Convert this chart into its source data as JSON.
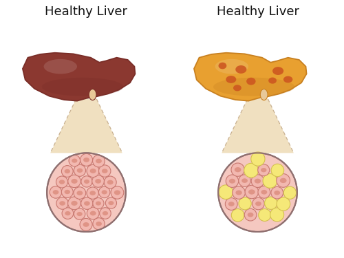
{
  "title_left": "Healthy Liver",
  "title_right": "Healthy Liver",
  "bg_color": "#ffffff",
  "title_fontsize": 13,
  "left_liver_color": "#8B3830",
  "left_liver_shadow": "#7a2e28",
  "left_liver_highlight": "#a05050",
  "right_liver_color": "#E8A030",
  "right_liver_shadow": "#c88020",
  "right_liver_spots": "#CC5520",
  "connector_color": "#E8C898",
  "left_cell_bg": "#F2B8B0",
  "left_cell_border": "#C87870",
  "left_cell_nucleus": "#D98878",
  "right_cell_bg_pink": "#F2B8B0",
  "right_cell_bg_yellow": "#F5E878",
  "right_cell_border_pink": "#C87870",
  "right_cell_border_yellow": "#D4C050",
  "right_cell_nucleus": "#D98878",
  "funnel_color": "#F0E0C0",
  "funnel_border": "#C8B090",
  "circle_bg_left": "#F5C8C0",
  "circle_bg_right": "#F5C8C0",
  "circle_border": "#907070"
}
